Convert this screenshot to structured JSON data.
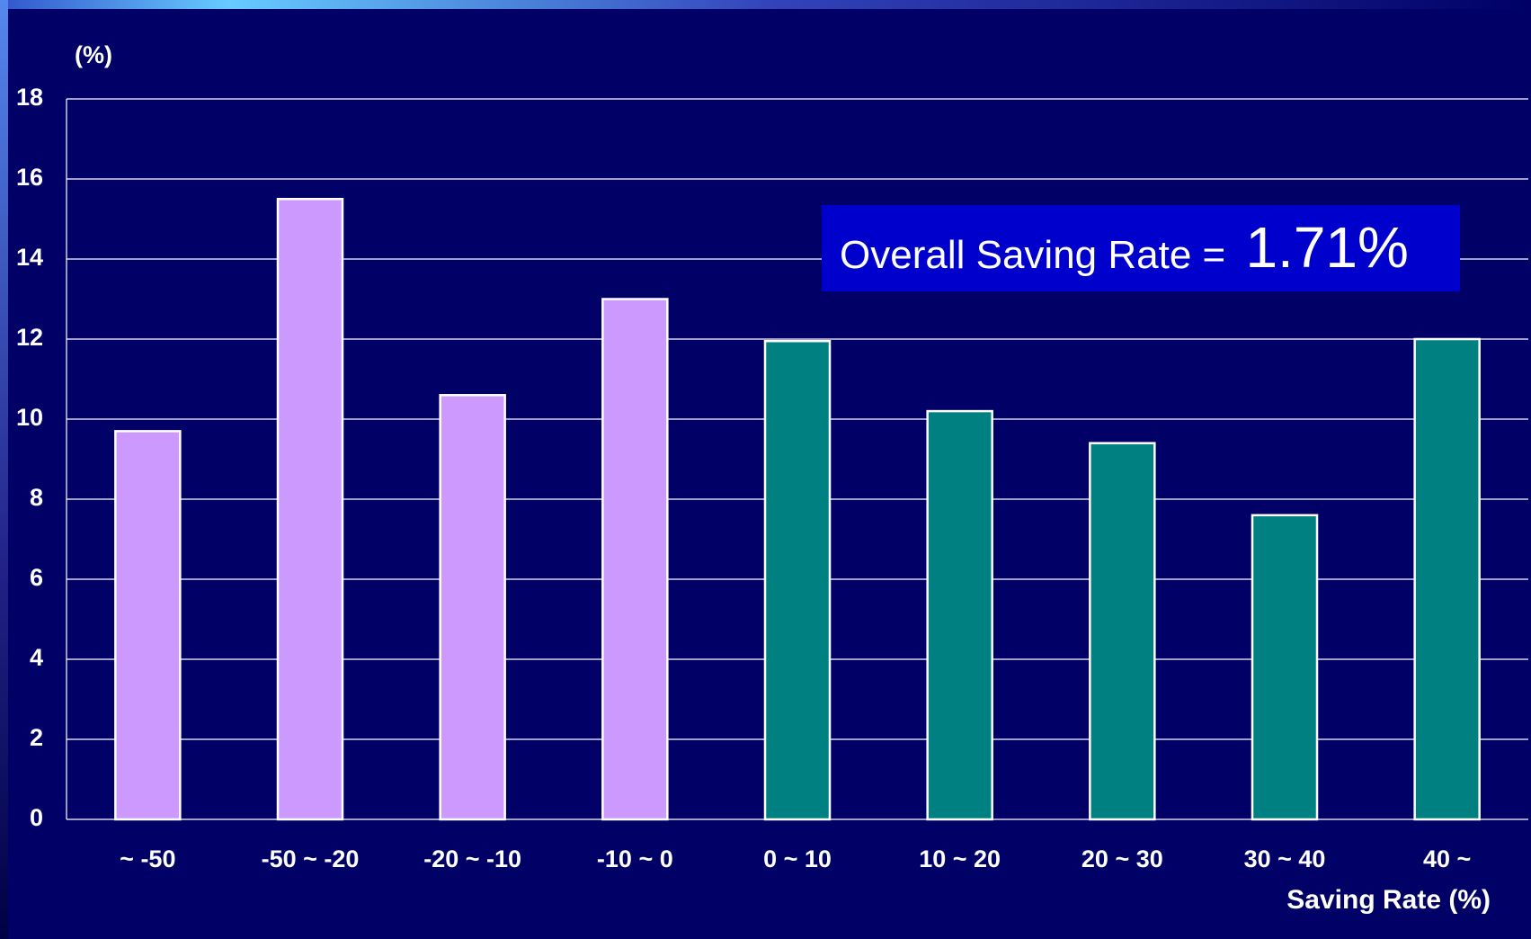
{
  "chart_data": {
    "type": "bar",
    "y_label": "(%)",
    "x_label": "Saving Rate (%)",
    "annotation": [
      "Overall Saving Rate =",
      "1.71%"
    ],
    "categories": [
      "~ -50",
      "-50 ~ -20",
      "-20 ~ -10",
      "-10 ~ 0",
      "0 ~ 10",
      "10 ~ 20",
      "20 ~ 30",
      "30 ~ 40",
      "40 ~"
    ],
    "values": [
      9.7,
      15.5,
      10.6,
      13.0,
      11.95,
      10.2,
      9.4,
      7.6,
      12.0
    ],
    "colors": [
      "#cc99ff",
      "#cc99ff",
      "#cc99ff",
      "#cc99ff",
      "#008080",
      "#008080",
      "#008080",
      "#008080",
      "#008080"
    ],
    "ylim": [
      0,
      18
    ],
    "yticks": [
      0,
      2,
      4,
      6,
      8,
      10,
      12,
      14,
      16,
      18
    ],
    "grid": true
  }
}
